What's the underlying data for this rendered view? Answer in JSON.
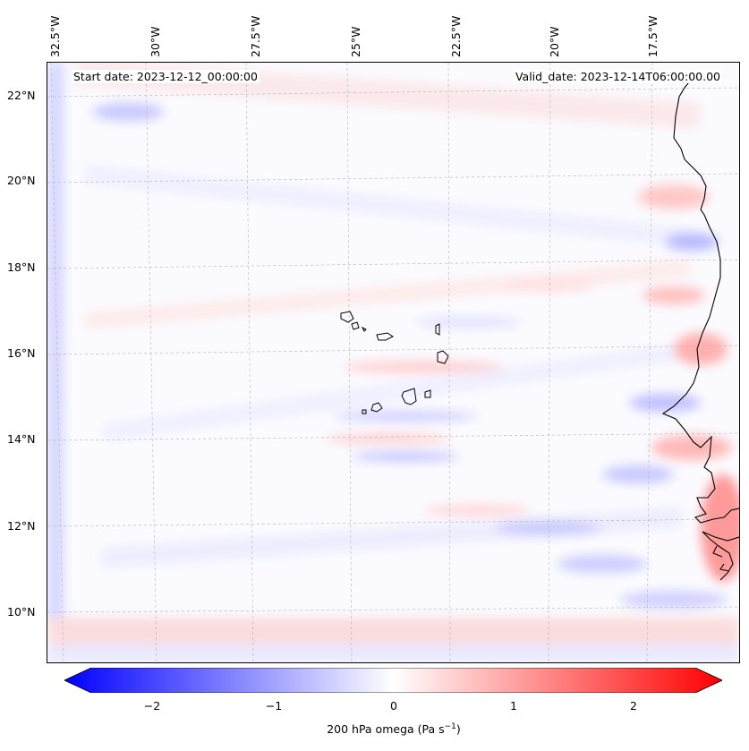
{
  "header": {
    "start_date": "Start date: 2023-12-12_00:00:00",
    "valid_date": "Valid_date: 2023-12-14T06:00:00.00"
  },
  "axes": {
    "lon_labels": [
      "32.5°W",
      "30°W",
      "27.5°W",
      "25°W",
      "22.5°W",
      "20°W",
      "17.5°W"
    ],
    "lat_labels": [
      "22°N",
      "20°N",
      "18°N",
      "16°N",
      "14°N",
      "12°N",
      "10°N"
    ]
  },
  "colorbar": {
    "ticks": [
      "−2",
      "−1",
      "0",
      "1",
      "2"
    ],
    "title_main": "200 hPa omega (Pa s",
    "title_sup": "−1",
    "title_end": ")",
    "min_color": "#0000ff",
    "mid_color": "#ffffff",
    "max_color": "#ff0000"
  }
}
